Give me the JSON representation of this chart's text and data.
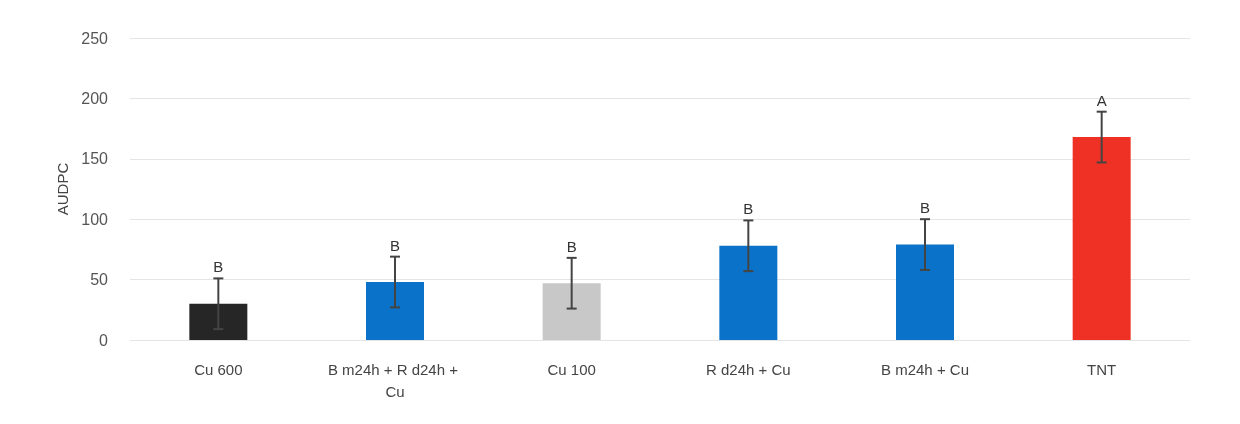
{
  "chart_data": {
    "type": "bar",
    "ylabel": "AUDPC",
    "categories": [
      "Cu 600",
      "B m24h + R d24h + Cu",
      "Cu 100",
      "R d24h + Cu",
      "B m24h + Cu",
      "TNT"
    ],
    "values": [
      30,
      48,
      47,
      78,
      79,
      168
    ],
    "errors": [
      21,
      21,
      21,
      21,
      21,
      21
    ],
    "colors": [
      "#262626",
      "#0a72c8",
      "#c8c8c8",
      "#0a72c8",
      "#0a72c8",
      "#ee3124"
    ],
    "ylim": [
      0,
      250
    ],
    "yticks": [
      0,
      50,
      100,
      150,
      200,
      250
    ],
    "grid": "y",
    "annotations": [
      {
        "text": "B",
        "x": "Cu 600",
        "y": 51
      },
      {
        "text": "B",
        "x": "B m24h + R d24h + Cu",
        "y": 69
      },
      {
        "text": "B",
        "x": "Cu 100",
        "y": 68
      },
      {
        "text": "B",
        "x": "R d24h + Cu",
        "y": 99
      },
      {
        "text": "B",
        "x": "B m24h + Cu",
        "y": 100
      },
      {
        "text": "A",
        "x": "TNT",
        "y": 189
      }
    ]
  }
}
